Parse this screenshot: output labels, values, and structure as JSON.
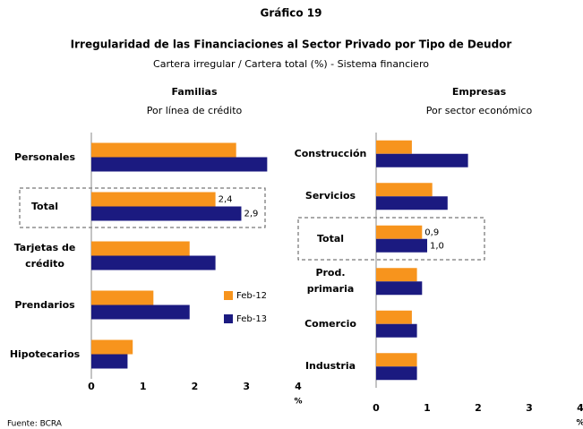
{
  "header": {
    "label": "Gráfico 19",
    "title": "Irregularidad de las Financiaciones al Sector Privado por Tipo de Deudor",
    "subtitle": "Cartera irregular / Cartera total (%) - Sistema financiero"
  },
  "source": "Fuente: BCRA",
  "chart_data": [
    {
      "type": "bar",
      "orientation": "horizontal",
      "title": "Familias",
      "subtitle": "Por línea de crédito",
      "categories": [
        "Personales",
        "Total",
        "Tarjetas de\ncrédito",
        "Prendarios",
        "Hipotecarios"
      ],
      "series": [
        {
          "name": "Feb-12",
          "color": "#f7941d",
          "values": [
            2.8,
            2.4,
            1.9,
            1.2,
            0.8
          ],
          "value_labels": [
            null,
            "2,4",
            null,
            null,
            null
          ]
        },
        {
          "name": "Feb-13",
          "color": "#1b1a80",
          "values": [
            3.4,
            2.9,
            2.4,
            1.9,
            0.7
          ],
          "value_labels": [
            null,
            "2,9",
            null,
            null,
            null
          ]
        }
      ],
      "xlim": [
        0,
        4
      ],
      "xticks": [
        0,
        1,
        2,
        3,
        4
      ],
      "xlabel": "%",
      "legend": "center-right"
    },
    {
      "type": "bar",
      "orientation": "horizontal",
      "title": "Empresas",
      "subtitle": "Por sector económico",
      "categories": [
        "Construcción",
        "Servicios",
        "Total",
        "Prod.\nprimaria",
        "Comercio",
        "Industria"
      ],
      "series": [
        {
          "color": "#f7941d",
          "values": [
            0.7,
            1.1,
            0.9,
            0.8,
            0.7,
            0.8
          ],
          "value_labels": [
            null,
            null,
            "0,9",
            null,
            null,
            null
          ]
        },
        {
          "color": "#1b1a80",
          "values": [
            1.8,
            1.4,
            1.0,
            0.9,
            0.8,
            0.8
          ],
          "value_labels": [
            null,
            null,
            "1,0",
            null,
            null,
            null
          ]
        }
      ],
      "xlim": [
        0,
        4
      ],
      "xticks": [
        0,
        1,
        2,
        3,
        4
      ],
      "xlabel": "%"
    }
  ]
}
